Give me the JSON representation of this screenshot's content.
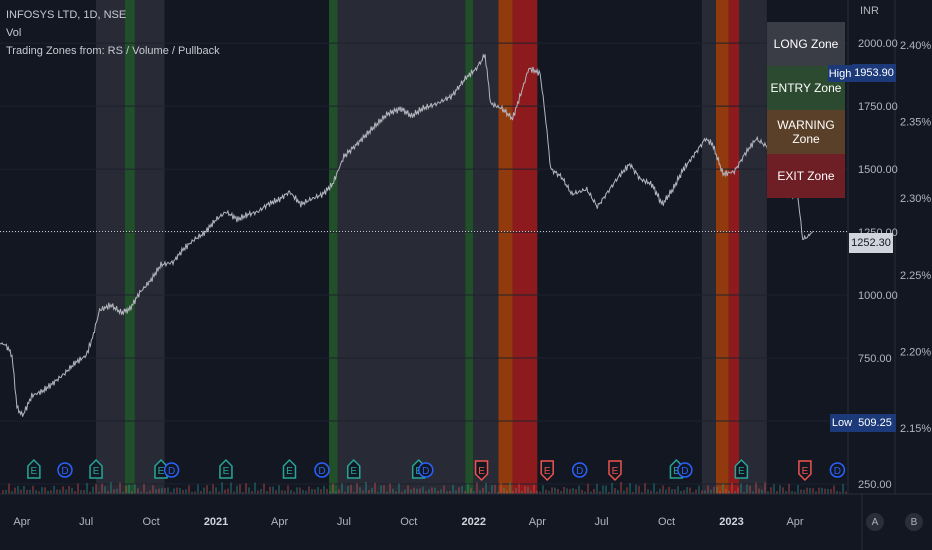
{
  "legend": {
    "symbol": "INFOSYS LTD, 1D, NSE",
    "indicator_vol": "Vol",
    "indicator_zones": "Trading Zones from: RS / Volume / Pullback"
  },
  "zone_table": [
    {
      "label": "LONG Zone",
      "color": "#3b3d46"
    },
    {
      "label": "ENTRY Zone",
      "color": "#2b4a2f"
    },
    {
      "label": "WARNING Zone",
      "color": "#5a4028"
    },
    {
      "label": "EXIT Zone",
      "color": "#6e1f26"
    }
  ],
  "axis": {
    "currency": "INR",
    "price_ticks": [
      "250.00",
      "500.00",
      "750.00",
      "1000.00",
      "1250.00",
      "1500.00",
      "1750.00",
      "2000.00"
    ],
    "pct_ticks": [
      "2.15%",
      "2.20%",
      "2.25%",
      "2.30%",
      "2.35%",
      "2.40%"
    ],
    "time_ticks": [
      {
        "label": "Apr",
        "bold": false
      },
      {
        "label": "Jul",
        "bold": false
      },
      {
        "label": "Oct",
        "bold": false
      },
      {
        "label": "2021",
        "bold": true
      },
      {
        "label": "Apr",
        "bold": false
      },
      {
        "label": "Jul",
        "bold": false
      },
      {
        "label": "Oct",
        "bold": false
      },
      {
        "label": "2022",
        "bold": true
      },
      {
        "label": "Apr",
        "bold": false
      },
      {
        "label": "Jul",
        "bold": false
      },
      {
        "label": "Oct",
        "bold": false
      },
      {
        "label": "2023",
        "bold": true
      },
      {
        "label": "Apr",
        "bold": false
      }
    ],
    "buttons": [
      "A",
      "B"
    ]
  },
  "badges": {
    "high_label": "High",
    "high_value": "1953.90",
    "low_label": "Low",
    "low_value": "509.25",
    "last_value": "1252.30"
  },
  "colors": {
    "long": "#3b3d46",
    "entry": "#2e7d32",
    "warning": "#e65100",
    "exit": "#b71c1c",
    "earnings_green": "#26a69a",
    "earnings_red": "#ef5350",
    "dividend": "#2962ff"
  },
  "chart_data": {
    "type": "line",
    "title": "INFOSYS LTD, 1D, NSE",
    "xlabel": "",
    "ylabel": "",
    "ylim": [
      250,
      2060
    ],
    "last_price": 1252.3,
    "high": 1953.9,
    "low": 509.25,
    "series": [
      {
        "name": "",
        "points": [
          [
            "2020-03-01",
            810
          ],
          [
            "2020-03-10",
            800
          ],
          [
            "2020-03-18",
            760
          ],
          [
            "2020-03-25",
            555
          ],
          [
            "2020-04-02",
            520
          ],
          [
            "2020-04-15",
            600
          ],
          [
            "2020-05-01",
            620
          ],
          [
            "2020-05-15",
            650
          ],
          [
            "2020-06-01",
            690
          ],
          [
            "2020-06-15",
            730
          ],
          [
            "2020-07-01",
            760
          ],
          [
            "2020-07-10",
            830
          ],
          [
            "2020-07-20",
            940
          ],
          [
            "2020-08-05",
            960
          ],
          [
            "2020-08-20",
            930
          ],
          [
            "2020-09-01",
            945
          ],
          [
            "2020-09-15",
            1010
          ],
          [
            "2020-10-01",
            1060
          ],
          [
            "2020-10-15",
            1120
          ],
          [
            "2020-11-01",
            1130
          ],
          [
            "2020-11-15",
            1180
          ],
          [
            "2020-12-01",
            1220
          ],
          [
            "2020-12-15",
            1245
          ],
          [
            "2021-01-01",
            1300
          ],
          [
            "2021-01-15",
            1330
          ],
          [
            "2021-02-01",
            1300
          ],
          [
            "2021-02-15",
            1320
          ],
          [
            "2021-03-01",
            1330
          ],
          [
            "2021-03-15",
            1360
          ],
          [
            "2021-04-01",
            1380
          ],
          [
            "2021-04-15",
            1410
          ],
          [
            "2021-05-01",
            1360
          ],
          [
            "2021-05-15",
            1380
          ],
          [
            "2021-06-01",
            1400
          ],
          [
            "2021-06-15",
            1440
          ],
          [
            "2021-07-01",
            1550
          ],
          [
            "2021-07-20",
            1600
          ],
          [
            "2021-08-10",
            1660
          ],
          [
            "2021-09-01",
            1720
          ],
          [
            "2021-09-20",
            1740
          ],
          [
            "2021-10-05",
            1710
          ],
          [
            "2021-10-20",
            1740
          ],
          [
            "2021-11-10",
            1760
          ],
          [
            "2021-12-01",
            1790
          ],
          [
            "2021-12-20",
            1860
          ],
          [
            "2022-01-05",
            1900
          ],
          [
            "2022-01-17",
            1953.9
          ],
          [
            "2022-01-25",
            1760
          ],
          [
            "2022-02-10",
            1740
          ],
          [
            "2022-02-25",
            1700
          ],
          [
            "2022-03-10",
            1810
          ],
          [
            "2022-03-20",
            1900
          ],
          [
            "2022-04-05",
            1880
          ],
          [
            "2022-04-12",
            1720
          ],
          [
            "2022-04-20",
            1500
          ],
          [
            "2022-05-05",
            1470
          ],
          [
            "2022-05-20",
            1400
          ],
          [
            "2022-06-10",
            1420
          ],
          [
            "2022-06-25",
            1350
          ],
          [
            "2022-07-10",
            1410
          ],
          [
            "2022-07-25",
            1470
          ],
          [
            "2022-08-10",
            1520
          ],
          [
            "2022-08-25",
            1460
          ],
          [
            "2022-09-10",
            1440
          ],
          [
            "2022-09-25",
            1360
          ],
          [
            "2022-10-10",
            1420
          ],
          [
            "2022-10-25",
            1500
          ],
          [
            "2022-11-10",
            1560
          ],
          [
            "2022-11-25",
            1620
          ],
          [
            "2022-12-05",
            1600
          ],
          [
            "2022-12-20",
            1480
          ],
          [
            "2023-01-05",
            1490
          ],
          [
            "2023-01-20",
            1560
          ],
          [
            "2023-02-05",
            1620
          ],
          [
            "2023-02-20",
            1590
          ],
          [
            "2023-03-05",
            1470
          ],
          [
            "2023-03-20",
            1400
          ],
          [
            "2023-04-05",
            1390
          ],
          [
            "2023-04-12",
            1220
          ],
          [
            "2023-04-20",
            1235
          ],
          [
            "2023-04-26",
            1252.3
          ]
        ]
      }
    ],
    "zones": [
      {
        "type": "long",
        "start": "2020-07-15",
        "end": "2020-08-25"
      },
      {
        "type": "entry",
        "start": "2020-08-25",
        "end": "2020-09-08"
      },
      {
        "type": "long",
        "start": "2020-09-08",
        "end": "2020-10-20"
      },
      {
        "type": "entry",
        "start": "2021-06-10",
        "end": "2021-06-22"
      },
      {
        "type": "long",
        "start": "2021-06-22",
        "end": "2021-12-20"
      },
      {
        "type": "entry",
        "start": "2021-12-20",
        "end": "2021-12-31"
      },
      {
        "type": "long",
        "start": "2021-12-31",
        "end": "2022-02-05"
      },
      {
        "type": "warning",
        "start": "2022-02-05",
        "end": "2022-02-25"
      },
      {
        "type": "exit",
        "start": "2022-02-25",
        "end": "2022-04-01"
      },
      {
        "type": "long",
        "start": "2022-11-20",
        "end": "2022-12-10"
      },
      {
        "type": "warning",
        "start": "2022-12-10",
        "end": "2022-12-28"
      },
      {
        "type": "exit",
        "start": "2022-12-28",
        "end": "2023-01-12"
      },
      {
        "type": "long",
        "start": "2023-01-12",
        "end": "2023-02-20"
      }
    ],
    "events": [
      {
        "kind": "E",
        "color": "green",
        "date": "2020-04-18"
      },
      {
        "kind": "D",
        "color": "blue",
        "date": "2020-06-01"
      },
      {
        "kind": "E",
        "color": "green",
        "date": "2020-07-15"
      },
      {
        "kind": "E",
        "color": "green",
        "date": "2020-10-15"
      },
      {
        "kind": "D",
        "color": "blue",
        "date": "2020-10-30"
      },
      {
        "kind": "E",
        "color": "green",
        "date": "2021-01-15"
      },
      {
        "kind": "E",
        "color": "green",
        "date": "2021-04-15"
      },
      {
        "kind": "D",
        "color": "blue",
        "date": "2021-05-31"
      },
      {
        "kind": "E",
        "color": "green",
        "date": "2021-07-15"
      },
      {
        "kind": "E",
        "color": "green",
        "date": "2021-10-15"
      },
      {
        "kind": "D",
        "color": "blue",
        "date": "2021-10-25"
      },
      {
        "kind": "E",
        "color": "red",
        "date": "2022-01-12"
      },
      {
        "kind": "E",
        "color": "red",
        "date": "2022-04-15"
      },
      {
        "kind": "D",
        "color": "blue",
        "date": "2022-05-31"
      },
      {
        "kind": "E",
        "color": "red",
        "date": "2022-07-20"
      },
      {
        "kind": "E",
        "color": "green",
        "date": "2022-10-15"
      },
      {
        "kind": "D",
        "color": "blue",
        "date": "2022-10-27"
      },
      {
        "kind": "E",
        "color": "green",
        "date": "2023-01-15"
      },
      {
        "kind": "E",
        "color": "red",
        "date": "2023-04-15"
      },
      {
        "kind": "D",
        "color": "blue",
        "date": "2023-05-31"
      }
    ]
  }
}
